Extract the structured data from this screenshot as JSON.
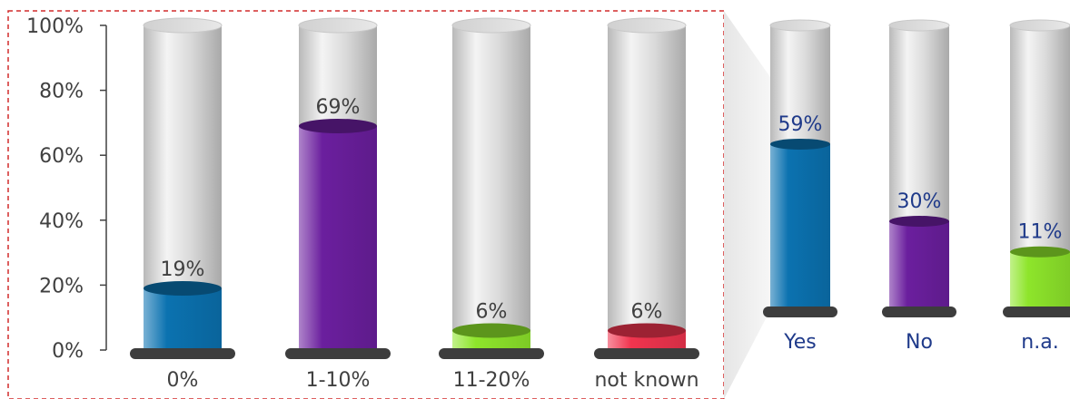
{
  "chart_data": [
    {
      "type": "bar",
      "style": "3d-cylinder",
      "categories": [
        "0%",
        "1-10%",
        "11-20%",
        "not known"
      ],
      "values": [
        19,
        69,
        6,
        6
      ],
      "data_labels": [
        "19%",
        "69%",
        "6%",
        "6%"
      ],
      "colors": [
        "#0b72b0",
        "#6b1f9e",
        "#8ee52b",
        "#f0344e"
      ],
      "ylim": [
        0,
        100
      ],
      "y_ticks": [
        "0%",
        "20%",
        "40%",
        "60%",
        "80%",
        "100%"
      ],
      "tick_color": "#404040",
      "label_color": "#404040",
      "highlight_border": "dashed-red"
    },
    {
      "type": "bar",
      "style": "3d-cylinder",
      "categories": [
        "Yes",
        "No",
        "n.a."
      ],
      "values": [
        59,
        30,
        11
      ],
      "data_labels": [
        "59%",
        "30%",
        "11%"
      ],
      "colors": [
        "#0b72b0",
        "#6b1f9e",
        "#8ee52b"
      ],
      "label_color": "#1f3a8a"
    }
  ]
}
